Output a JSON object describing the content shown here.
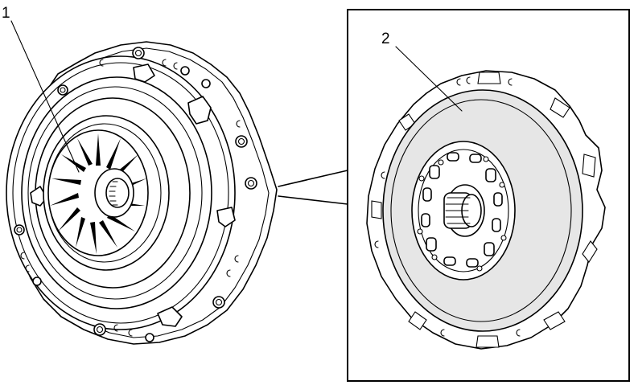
{
  "figure": {
    "callouts": [
      {
        "id": "1",
        "label": "1"
      },
      {
        "id": "2",
        "label": "2"
      }
    ],
    "parts": [
      {
        "id": "pressure-plate",
        "callout": "1"
      },
      {
        "id": "clutch-disc",
        "callout": "2"
      }
    ],
    "colors": {
      "line": "#000000",
      "disc_face": "#e6e6e6",
      "background": "#ffffff"
    }
  }
}
